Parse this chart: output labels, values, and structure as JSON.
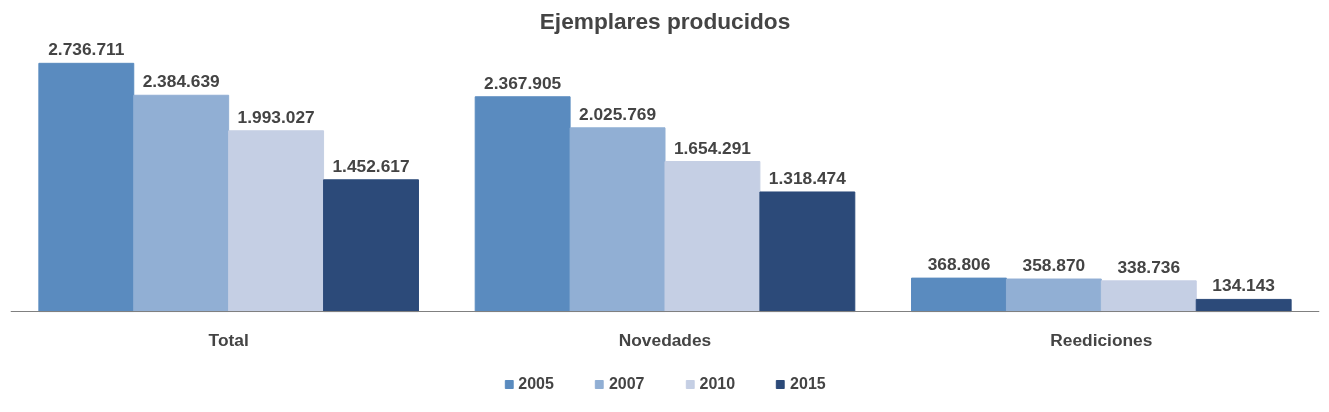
{
  "chart_data": {
    "type": "bar",
    "title": "Ejemplares producidos",
    "categories": [
      "Total",
      "Novedades",
      "Reediciones"
    ],
    "series": [
      {
        "name": "2005",
        "color": "#5a8bbf",
        "values": [
          2736711,
          2367905,
          368806
        ],
        "value_labels": [
          "2.736.711",
          "2.367.905",
          "368.806"
        ]
      },
      {
        "name": "2007",
        "color": "#91afd4",
        "values": [
          2384639,
          2025769,
          358870
        ],
        "value_labels": [
          "2.384.639",
          "2.025.769",
          "358.870"
        ]
      },
      {
        "name": "2010",
        "color": "#c5cfe4",
        "values": [
          1993027,
          1654291,
          338736
        ],
        "value_labels": [
          "1.993.027",
          "1.654.291",
          "338.736"
        ]
      },
      {
        "name": "2015",
        "color": "#2c4a79",
        "values": [
          1452617,
          1318474,
          134143
        ],
        "value_labels": [
          "1.452.617",
          "1.318.474",
          "134.143"
        ]
      }
    ],
    "legend": "bottom"
  }
}
